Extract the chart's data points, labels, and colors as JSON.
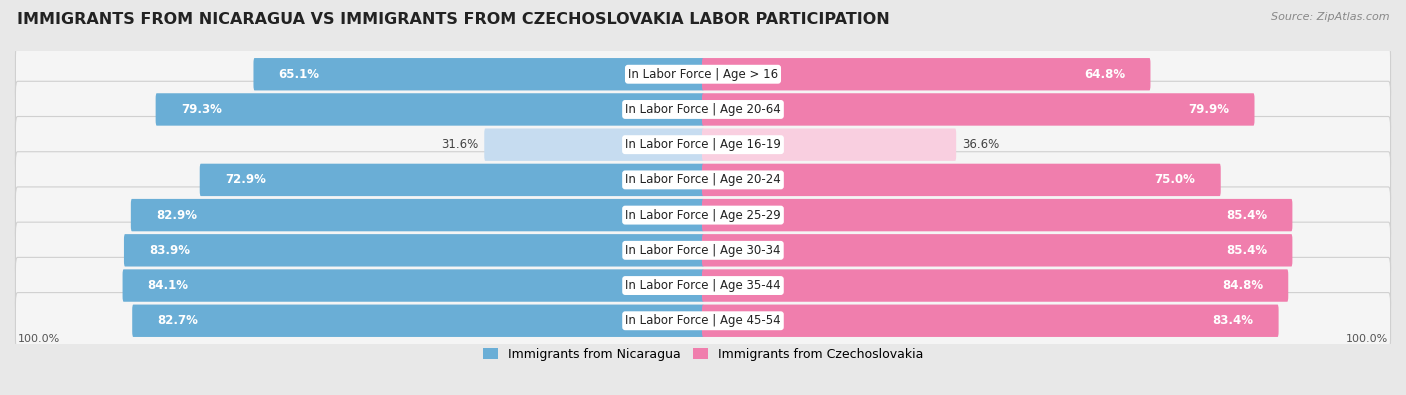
{
  "title": "IMMIGRANTS FROM NICARAGUA VS IMMIGRANTS FROM CZECHOSLOVAKIA LABOR PARTICIPATION",
  "source": "Source: ZipAtlas.com",
  "categories": [
    "In Labor Force | Age > 16",
    "In Labor Force | Age 20-64",
    "In Labor Force | Age 16-19",
    "In Labor Force | Age 20-24",
    "In Labor Force | Age 25-29",
    "In Labor Force | Age 30-34",
    "In Labor Force | Age 35-44",
    "In Labor Force | Age 45-54"
  ],
  "nicaragua_values": [
    65.1,
    79.3,
    31.6,
    72.9,
    82.9,
    83.9,
    84.1,
    82.7
  ],
  "czechoslovakia_values": [
    64.8,
    79.9,
    36.6,
    75.0,
    85.4,
    85.4,
    84.8,
    83.4
  ],
  "nicaragua_color": "#6aaed6",
  "czechoslovakia_color": "#f07ead",
  "nicaragua_light_color": "#c6dcf0",
  "czechoslovakia_light_color": "#f9cfe0",
  "background_color": "#e8e8e8",
  "row_bg_color": "#f5f5f5",
  "max_value": 100.0,
  "legend_nicaragua": "Immigrants from Nicaragua",
  "legend_czechoslovakia": "Immigrants from Czechoslovakia",
  "title_fontsize": 11.5,
  "label_fontsize": 8.5,
  "value_fontsize": 8.5,
  "bottom_label": "100.0%"
}
